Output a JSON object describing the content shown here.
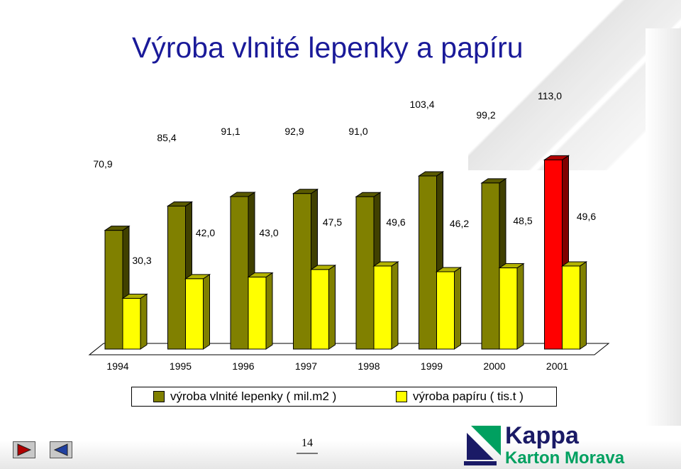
{
  "title": "Výroba vlnité lepenky a papíru",
  "page_number": "14",
  "logo": {
    "line1": "Kappa",
    "line2": "Karton Morava"
  },
  "colors": {
    "series1_face": "#808000",
    "series1_highlight": "#ff0000",
    "series2_face": "#ffff00",
    "title": "#1a1a99",
    "logo_green": "#00a060",
    "logo_navy": "#1a1a66"
  },
  "legend": [
    {
      "label": "výroba vlnité lepenky ( mil.m2 )"
    },
    {
      "label": "výroba papíru ( tis.t )"
    }
  ],
  "nav": {
    "next_icon": "play-right-icon",
    "prev_icon": "play-left-icon"
  },
  "chart_data": {
    "type": "bar",
    "style": "3d-clustered-column",
    "categories": [
      "1994",
      "1995",
      "1996",
      "1997",
      "1998",
      "1999",
      "2000",
      "2001"
    ],
    "series": [
      {
        "name": "výroba vlnité lepenky ( mil.m2 )",
        "values": [
          70.9,
          85.4,
          91.1,
          92.9,
          91.0,
          103.4,
          99.2,
          113.0
        ],
        "labels": [
          "70,9",
          "85,4",
          "91,1",
          "92,9",
          "91,0",
          "103,4",
          "99,2",
          "113,0"
        ],
        "highlight_last": true
      },
      {
        "name": "výroba papíru ( tis.t )",
        "values": [
          30.3,
          42.0,
          43.0,
          47.5,
          49.6,
          46.2,
          48.5,
          49.6
        ],
        "labels": [
          "30,3",
          "42,0",
          "43,0",
          "47,5",
          "49,6",
          "46,2",
          "48,5",
          "49,6"
        ]
      }
    ],
    "ylim": [
      0,
      125
    ],
    "grid": false,
    "legend_position": "bottom"
  }
}
